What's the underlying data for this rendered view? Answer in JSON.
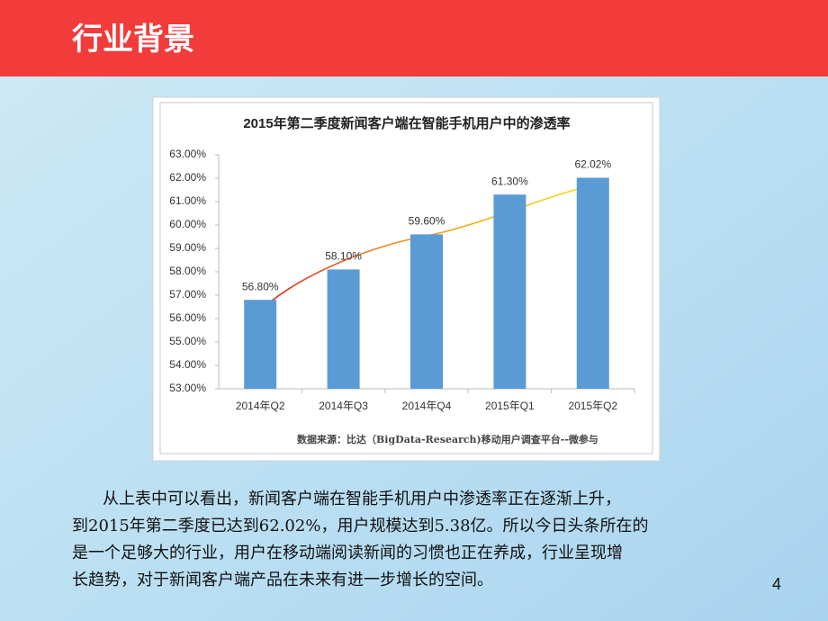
{
  "header": {
    "title": "行业背景"
  },
  "chart_data": {
    "type": "bar",
    "title": "2015年第二季度新闻客户端在智能手机用户中的渗透率",
    "categories": [
      "2014年Q2",
      "2014年Q3",
      "2014年Q4",
      "2015年Q1",
      "2015年Q2"
    ],
    "values": [
      56.8,
      58.1,
      59.6,
      61.3,
      62.02
    ],
    "value_labels": [
      "56.80%",
      "58.10%",
      "59.60%",
      "61.30%",
      "62.02%"
    ],
    "color": "#5b9bd5",
    "ylim": [
      53,
      63
    ],
    "yticks": [
      {
        "value": 53,
        "label": "53.00%"
      },
      {
        "value": 54,
        "label": "54.00%"
      },
      {
        "value": 55,
        "label": "55.00%"
      },
      {
        "value": 56,
        "label": "56.00%"
      },
      {
        "value": 57,
        "label": "57.00%"
      },
      {
        "value": 58,
        "label": "58.00%"
      },
      {
        "value": 59,
        "label": "59.00%"
      },
      {
        "value": 60,
        "label": "60.00%"
      },
      {
        "value": 61,
        "label": "61.00%"
      },
      {
        "value": 62,
        "label": "62.00%"
      },
      {
        "value": 63,
        "label": "63.00%"
      }
    ],
    "source": "数据来源：比达（BigData-Research)移动用户调查平台--微参与"
  },
  "paragraph_lines": [
    "从上表中可以看出，新闻客户端在智能手机用户中渗透率正在逐渐上升，",
    "到2015年第二季度已达到62.02%，用户规模达到5.38亿。所以今日头条所在的",
    "是一个足够大的行业，用户在移动端阅读新闻的习惯也正在养成，行业呈现增",
    "长趋势，对于新闻客户端产品在未来有进一步增长的空间。"
  ],
  "page_number": 4
}
